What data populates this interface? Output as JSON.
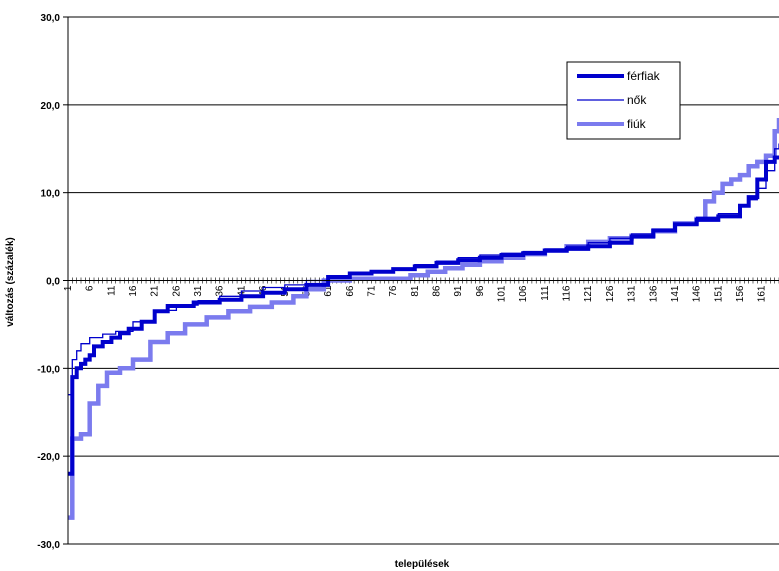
{
  "chart_data": {
    "type": "line",
    "title": "",
    "xlabel": "települések",
    "ylabel": "változás (százalék)",
    "x_range": [
      1,
      165
    ],
    "ylim": [
      -30,
      30
    ],
    "yticks": [
      -30,
      -20,
      -10,
      0,
      10,
      20,
      30
    ],
    "ytick_labels": [
      "-30,0",
      "-20,0",
      "-10,0",
      "0,0",
      "10,0",
      "20,0",
      "30,0"
    ],
    "xtick_labels": [
      "1",
      "6",
      "11",
      "16",
      "21",
      "26",
      "31",
      "36",
      "41",
      "46",
      "51",
      "56",
      "61",
      "66",
      "71",
      "76",
      "81",
      "86",
      "91",
      "96",
      "101",
      "106",
      "111",
      "116",
      "121",
      "126",
      "131",
      "136",
      "141",
      "146",
      "151",
      "156",
      "161"
    ],
    "grid": "horizontal",
    "legend_position": "top-right",
    "series": [
      {
        "name": "férfiak",
        "color": "#0000cc",
        "anchors": [
          [
            1,
            -22
          ],
          [
            2,
            -11
          ],
          [
            3,
            -10
          ],
          [
            4,
            -9.5
          ],
          [
            5,
            -9
          ],
          [
            6,
            -8.5
          ],
          [
            7,
            -7.5
          ],
          [
            9,
            -7
          ],
          [
            11,
            -6.5
          ],
          [
            13,
            -6
          ],
          [
            15,
            -5.5
          ],
          [
            18,
            -4.7
          ],
          [
            21,
            -3.5
          ],
          [
            24,
            -2.9
          ],
          [
            30,
            -2.5
          ],
          [
            36,
            -2.2
          ],
          [
            41,
            -1.8
          ],
          [
            46,
            -1.4
          ],
          [
            51,
            -1
          ],
          [
            56,
            -0.5
          ],
          [
            61,
            0.4
          ],
          [
            66,
            0.8
          ],
          [
            71,
            1
          ],
          [
            76,
            1.3
          ],
          [
            81,
            1.6
          ],
          [
            86,
            2
          ],
          [
            91,
            2.3
          ],
          [
            96,
            2.6
          ],
          [
            101,
            2.9
          ],
          [
            106,
            3.1
          ],
          [
            111,
            3.4
          ],
          [
            116,
            3.6
          ],
          [
            121,
            3.9
          ],
          [
            126,
            4.3
          ],
          [
            131,
            5
          ],
          [
            136,
            5.7
          ],
          [
            141,
            6.4
          ],
          [
            146,
            6.9
          ],
          [
            151,
            7.3
          ],
          [
            156,
            8.5
          ],
          [
            158,
            9.5
          ],
          [
            160,
            11.5
          ],
          [
            162,
            13.5
          ],
          [
            164,
            14
          ],
          [
            165,
            14.2
          ]
        ]
      },
      {
        "name": "nők",
        "color": "#0000cc",
        "anchors": [
          [
            1,
            -13
          ],
          [
            2,
            -9
          ],
          [
            3,
            -8
          ],
          [
            4,
            -7.2
          ],
          [
            6,
            -6.5
          ],
          [
            9,
            -6.1
          ],
          [
            12,
            -5.8
          ],
          [
            16,
            -4.7
          ],
          [
            21,
            -3.4
          ],
          [
            26,
            -2.8
          ],
          [
            31,
            -2.3
          ],
          [
            36,
            -1.8
          ],
          [
            41,
            -1.2
          ],
          [
            46,
            -0.8
          ],
          [
            51,
            -0.5
          ],
          [
            56,
            0
          ],
          [
            61,
            0.4
          ],
          [
            66,
            0.8
          ],
          [
            71,
            1.1
          ],
          [
            76,
            1.4
          ],
          [
            81,
            1.8
          ],
          [
            86,
            2.2
          ],
          [
            91,
            2.6
          ],
          [
            96,
            2.9
          ],
          [
            101,
            3.1
          ],
          [
            106,
            3.3
          ],
          [
            111,
            3.6
          ],
          [
            116,
            3.9
          ],
          [
            121,
            4.3
          ],
          [
            126,
            4.8
          ],
          [
            131,
            5.3
          ],
          [
            136,
            5.8
          ],
          [
            141,
            6.4
          ],
          [
            146,
            7.2
          ],
          [
            151,
            7.6
          ],
          [
            156,
            8.4
          ],
          [
            158,
            9.2
          ],
          [
            160,
            10.5
          ],
          [
            162,
            12.5
          ],
          [
            164,
            15
          ],
          [
            165,
            15.6
          ]
        ]
      },
      {
        "name": "fiúk",
        "color": "#7b7bee",
        "anchors": [
          [
            1,
            -27
          ],
          [
            2,
            -18
          ],
          [
            4,
            -17.5
          ],
          [
            6,
            -14
          ],
          [
            8,
            -12
          ],
          [
            10,
            -10.5
          ],
          [
            13,
            -10
          ],
          [
            16,
            -9
          ],
          [
            20,
            -7
          ],
          [
            24,
            -6
          ],
          [
            28,
            -5
          ],
          [
            33,
            -4.2
          ],
          [
            38,
            -3.5
          ],
          [
            43,
            -3
          ],
          [
            48,
            -2.5
          ],
          [
            53,
            -1.8
          ],
          [
            56,
            -1
          ],
          [
            60,
            0
          ],
          [
            66,
            0.2
          ],
          [
            71,
            0.2
          ],
          [
            76,
            0.2
          ],
          [
            80,
            0.6
          ],
          [
            84,
            1
          ],
          [
            88,
            1.4
          ],
          [
            92,
            1.8
          ],
          [
            96,
            2.2
          ],
          [
            101,
            2.6
          ],
          [
            106,
            3
          ],
          [
            111,
            3.4
          ],
          [
            116,
            3.9
          ],
          [
            121,
            4.4
          ],
          [
            126,
            4.8
          ],
          [
            131,
            5.1
          ],
          [
            136,
            5.6
          ],
          [
            141,
            6.5
          ],
          [
            146,
            7
          ],
          [
            148,
            9
          ],
          [
            150,
            10
          ],
          [
            152,
            11
          ],
          [
            154,
            11.5
          ],
          [
            156,
            12
          ],
          [
            158,
            13
          ],
          [
            160,
            13.5
          ],
          [
            162,
            14.2
          ],
          [
            164,
            17
          ],
          [
            165,
            18.5
          ]
        ]
      }
    ]
  }
}
